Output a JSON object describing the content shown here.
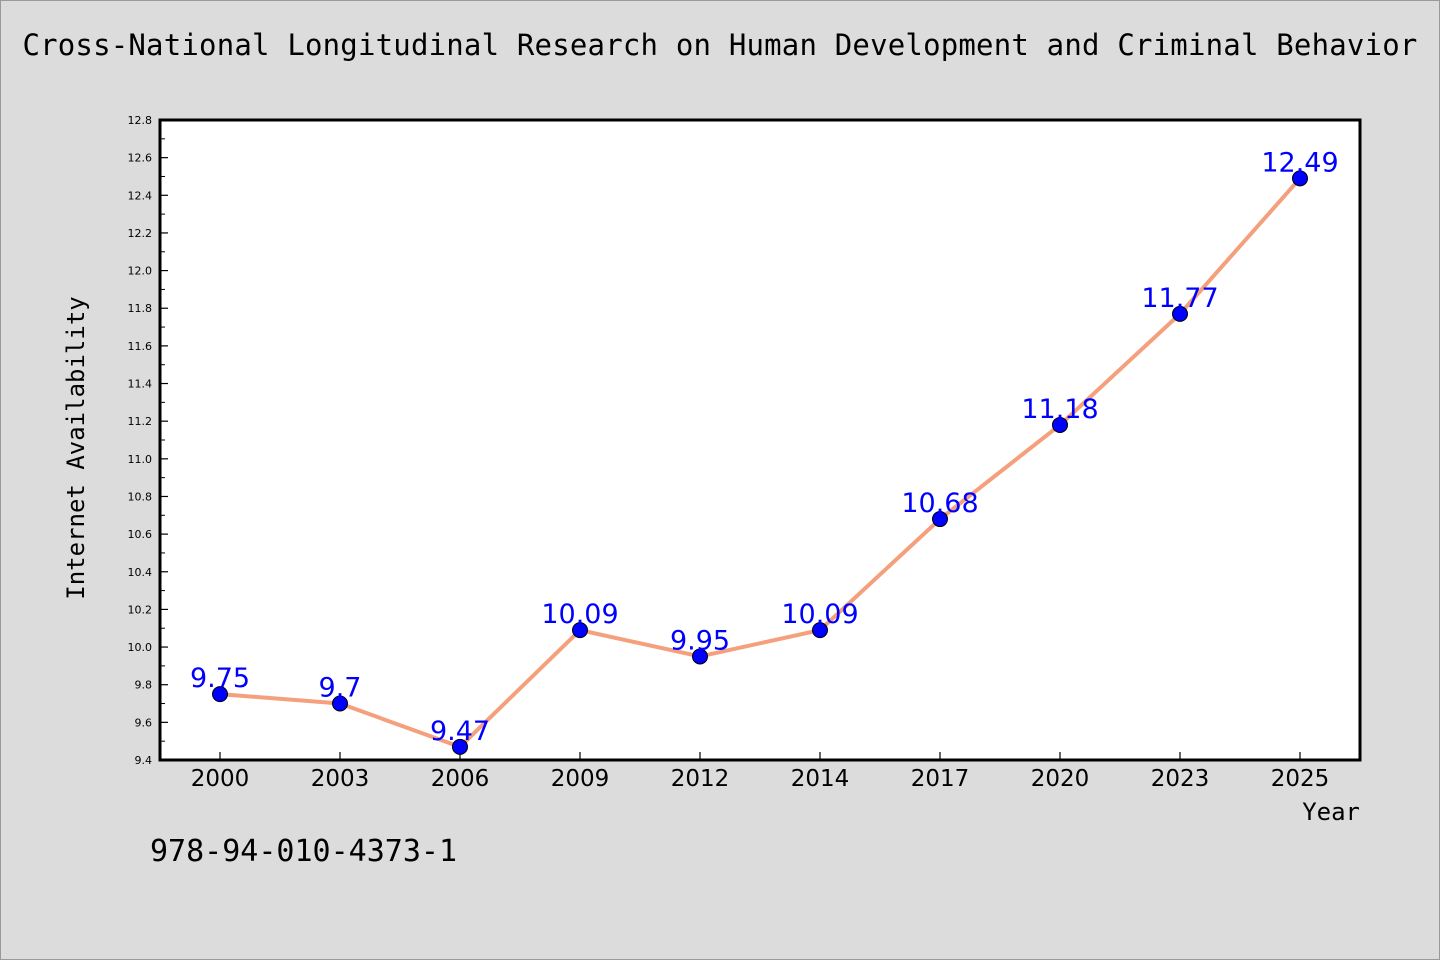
{
  "chart_data": {
    "type": "line",
    "title": "Cross-National Longitudinal Research on Human Development and Criminal Behavior",
    "xlabel": "Year",
    "ylabel": "Internet Availability",
    "categories": [
      "2000",
      "2003",
      "2006",
      "2009",
      "2012",
      "2014",
      "2017",
      "2020",
      "2023",
      "2025"
    ],
    "series": [
      {
        "values": [
          9.75,
          9.7,
          9.47,
          10.09,
          9.95,
          10.09,
          10.68,
          11.18,
          11.77,
          12.49
        ],
        "labels": [
          "9.75",
          "9.7",
          "9.47",
          "10.09",
          "9.95",
          "10.09",
          "10.68",
          "11.18",
          "11.77",
          "12.49"
        ]
      }
    ],
    "ylim": [
      9.4,
      12.8
    ],
    "yticks": [
      "9.4",
      "9.6",
      "9.8",
      "10.0",
      "10.2",
      "10.4",
      "10.6",
      "10.8",
      "11.0",
      "11.2",
      "11.4",
      "11.6",
      "11.8",
      "12.0",
      "12.2",
      "12.4",
      "12.6",
      "12.8"
    ],
    "grid": false,
    "legend": "none",
    "colors": {
      "line": "#f4a07c",
      "marker": "#0000ff",
      "data_label": "#0000ff",
      "background": "#dcdcdc",
      "plot_background": "#ffffff"
    }
  },
  "footer": {
    "code": "978-94-010-4373-1"
  }
}
